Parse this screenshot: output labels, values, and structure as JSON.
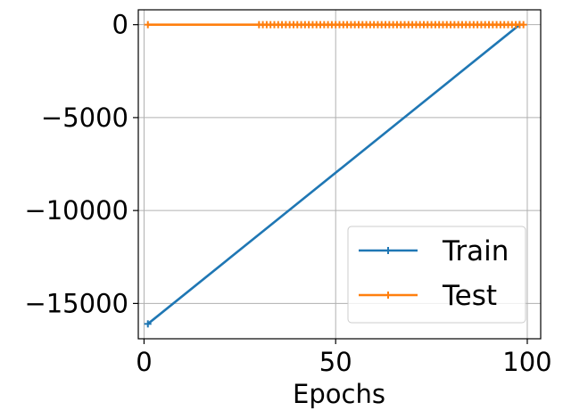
{
  "chart_data": {
    "type": "line",
    "title": "",
    "xlabel": "Epochs",
    "ylabel": "",
    "xlim": [
      -1.5,
      103.5
    ],
    "ylim": [
      -16900,
      800
    ],
    "xticks": [
      0,
      50,
      100
    ],
    "xtick_labels": [
      "0",
      "50",
      "100"
    ],
    "yticks": [
      0,
      -5000,
      -10000,
      -15000
    ],
    "ytick_labels": [
      "0",
      "−5000",
      "−10000",
      "−15000"
    ],
    "grid": true,
    "legend_position": "lower-right",
    "series": [
      {
        "name": "Train",
        "color": "#1f77b4",
        "marker": "plus",
        "points": [
          [
            1,
            -16100
          ],
          [
            98,
            0
          ]
        ]
      },
      {
        "name": "Test",
        "color": "#ff7f0e",
        "marker": "plus",
        "points": [
          [
            1,
            0
          ],
          [
            30,
            0
          ],
          [
            31,
            0
          ],
          [
            32,
            0
          ],
          [
            33,
            0
          ],
          [
            34,
            0
          ],
          [
            35,
            0
          ],
          [
            36,
            0
          ],
          [
            37,
            0
          ],
          [
            38,
            0
          ],
          [
            39,
            0
          ],
          [
            40,
            0
          ],
          [
            41,
            0
          ],
          [
            42,
            0
          ],
          [
            43,
            0
          ],
          [
            44,
            0
          ],
          [
            45,
            0
          ],
          [
            46,
            0
          ],
          [
            47,
            0
          ],
          [
            48,
            0
          ],
          [
            49,
            0
          ],
          [
            50,
            0
          ],
          [
            51,
            0
          ],
          [
            52,
            0
          ],
          [
            53,
            0
          ],
          [
            54,
            0
          ],
          [
            55,
            0
          ],
          [
            56,
            0
          ],
          [
            57,
            0
          ],
          [
            58,
            0
          ],
          [
            59,
            0
          ],
          [
            60,
            0
          ],
          [
            61,
            0
          ],
          [
            62,
            0
          ],
          [
            63,
            0
          ],
          [
            64,
            0
          ],
          [
            65,
            0
          ],
          [
            66,
            0
          ],
          [
            67,
            0
          ],
          [
            68,
            0
          ],
          [
            69,
            0
          ],
          [
            70,
            0
          ],
          [
            71,
            0
          ],
          [
            72,
            0
          ],
          [
            73,
            0
          ],
          [
            74,
            0
          ],
          [
            75,
            0
          ],
          [
            76,
            0
          ],
          [
            77,
            0
          ],
          [
            78,
            0
          ],
          [
            79,
            0
          ],
          [
            80,
            0
          ],
          [
            81,
            0
          ],
          [
            82,
            0
          ],
          [
            83,
            0
          ],
          [
            84,
            0
          ],
          [
            85,
            0
          ],
          [
            86,
            0
          ],
          [
            87,
            0
          ],
          [
            88,
            0
          ],
          [
            89,
            0
          ],
          [
            90,
            0
          ],
          [
            91,
            0
          ],
          [
            92,
            0
          ],
          [
            93,
            0
          ],
          [
            94,
            0
          ],
          [
            95,
            0
          ],
          [
            96,
            0
          ],
          [
            97,
            0
          ],
          [
            98,
            0
          ],
          [
            99,
            0
          ]
        ]
      }
    ]
  }
}
